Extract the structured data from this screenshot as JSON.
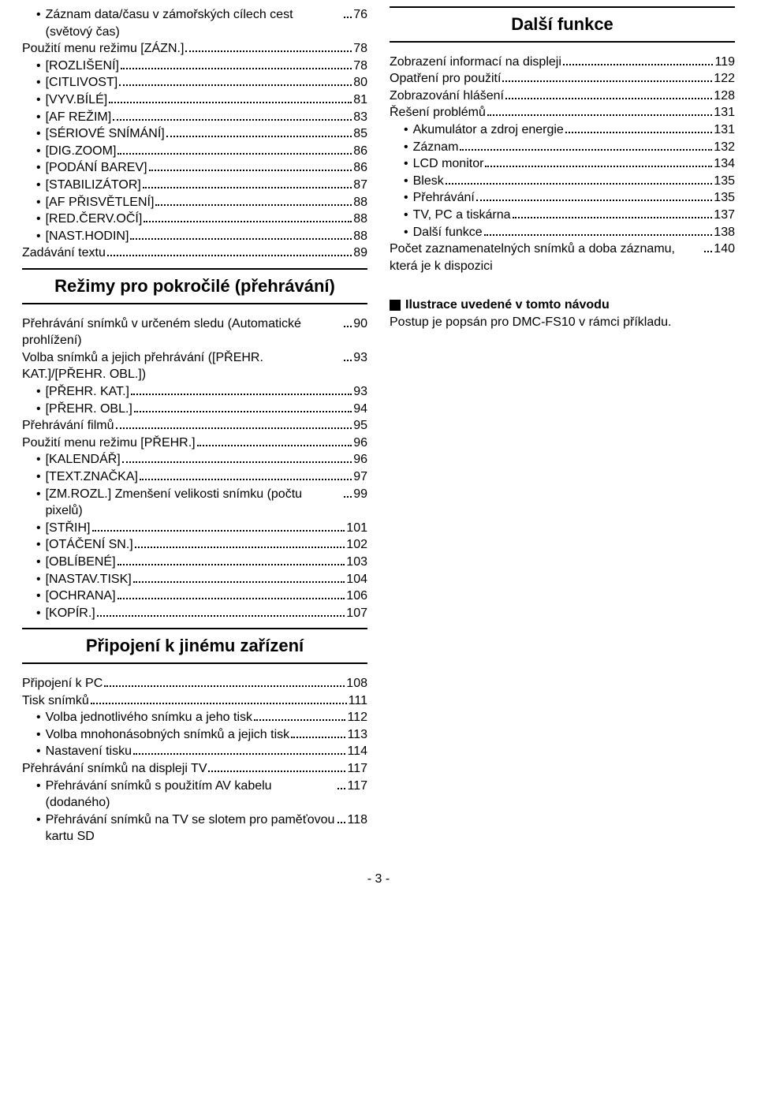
{
  "left": {
    "entries1": [
      {
        "label": "Záznam data/času v zámořských cílech cest (světový čas)",
        "page": "76",
        "sub": true
      },
      {
        "label": "Použití menu režimu [ZÁZN.]",
        "page": "78",
        "sub": false
      },
      {
        "label": "[ROZLIŠENÍ]",
        "page": "78",
        "sub": true
      },
      {
        "label": "[CITLIVOST]",
        "page": "80",
        "sub": true
      },
      {
        "label": "[VYV.BÍLÉ]",
        "page": "81",
        "sub": true
      },
      {
        "label": "[AF REŽIM]",
        "page": "83",
        "sub": true
      },
      {
        "label": "[SÉRIOVÉ SNÍMÁNÍ]",
        "page": "85",
        "sub": true
      },
      {
        "label": "[DIG.ZOOM]",
        "page": "86",
        "sub": true
      },
      {
        "label": "[PODÁNÍ BAREV]",
        "page": "86",
        "sub": true
      },
      {
        "label": "[STABILIZÁTOR]",
        "page": "87",
        "sub": true
      },
      {
        "label": "[AF PŘISVĚTLENÍ]",
        "page": "88",
        "sub": true
      },
      {
        "label": "[RED.ČERV.OČÍ]",
        "page": "88",
        "sub": true
      },
      {
        "label": "[NAST.HODIN]",
        "page": "88",
        "sub": true
      },
      {
        "label": "Zadávání textu",
        "page": "89",
        "sub": false
      }
    ],
    "section1": "Režimy pro pokročilé (přehrávání)",
    "entries2": [
      {
        "label": "Přehrávání snímků v určeném sledu (Automatické prohlížení)",
        "page": "90",
        "sub": false
      },
      {
        "label": "Volba snímků a jejich přehrávání ([PŘEHR. KAT.]/[PŘEHR. OBL.])",
        "page": "93",
        "sub": false
      },
      {
        "label": "[PŘEHR. KAT.]",
        "page": "93",
        "sub": true
      },
      {
        "label": "[PŘEHR. OBL.]",
        "page": "94",
        "sub": true
      },
      {
        "label": "Přehrávání filmů",
        "page": "95",
        "sub": false
      },
      {
        "label": "Použití menu režimu [PŘEHR.]",
        "page": "96",
        "sub": false
      },
      {
        "label": "[KALENDÁŘ]",
        "page": "96",
        "sub": true
      },
      {
        "label": "[TEXT.ZNAČKA]",
        "page": "97",
        "sub": true
      },
      {
        "label": "[ZM.ROZL.] Zmenšení velikosti snímku (počtu pixelů)",
        "page": "99",
        "sub": true
      },
      {
        "label": "[STŘIH]",
        "page": "101",
        "sub": true
      },
      {
        "label": "[OTÁČENÍ SN.]",
        "page": "102",
        "sub": true
      },
      {
        "label": "[OBLÍBENÉ]",
        "page": "103",
        "sub": true
      },
      {
        "label": "[NASTAV.TISK]",
        "page": "104",
        "sub": true
      },
      {
        "label": "[OCHRANA]",
        "page": "106",
        "sub": true
      },
      {
        "label": "[KOPÍR.]",
        "page": "107",
        "sub": true
      }
    ],
    "section2": "Připojení k jinému zařízení",
    "entries3": [
      {
        "label": "Připojení k PC",
        "page": "108",
        "sub": false
      },
      {
        "label": "Tisk snímků",
        "page": "111",
        "sub": false
      },
      {
        "label": "Volba jednotlivého snímku a jeho tisk",
        "page": "112",
        "sub": true
      },
      {
        "label": "Volba mnohonásobných snímků a jejich tisk",
        "page": "113",
        "sub": true
      },
      {
        "label": "Nastavení tisku",
        "page": "114",
        "sub": true
      },
      {
        "label": "Přehrávání snímků na displeji TV",
        "page": "117",
        "sub": false
      },
      {
        "label": "Přehrávání snímků s použitím AV kabelu (dodaného)",
        "page": "117",
        "sub": true
      },
      {
        "label": "Přehrávání snímků na TV se slotem pro paměťovou kartu SD",
        "page": "118",
        "sub": true
      }
    ]
  },
  "right": {
    "section1": "Další funkce",
    "entries1": [
      {
        "label": "Zobrazení informací na displeji",
        "page": "119",
        "sub": false
      },
      {
        "label": "Opatření pro použití",
        "page": "122",
        "sub": false
      },
      {
        "label": "Zobrazování hlášení",
        "page": "128",
        "sub": false
      },
      {
        "label": "Řešení problémů",
        "page": "131",
        "sub": false
      },
      {
        "label": "Akumulátor a zdroj energie",
        "page": "131",
        "sub": true
      },
      {
        "label": "Záznam",
        "page": "132",
        "sub": true
      },
      {
        "label": "LCD monitor",
        "page": "134",
        "sub": true
      },
      {
        "label": "Blesk",
        "page": "135",
        "sub": true
      },
      {
        "label": "Přehrávání",
        "page": "135",
        "sub": true
      },
      {
        "label": "TV, PC a tiskárna",
        "page": "137",
        "sub": true
      },
      {
        "label": "Další funkce",
        "page": "138",
        "sub": true
      },
      {
        "label": "Počet zaznamenatelných snímků a doba záznamu, která je k dispozici",
        "page": "140",
        "sub": false
      }
    ],
    "noteTitle": "Ilustrace uvedené v tomto návodu",
    "noteBody": "Postup je popsán pro DMC-FS10 v rámci příkladu."
  },
  "pageNumber": "- 3 -"
}
